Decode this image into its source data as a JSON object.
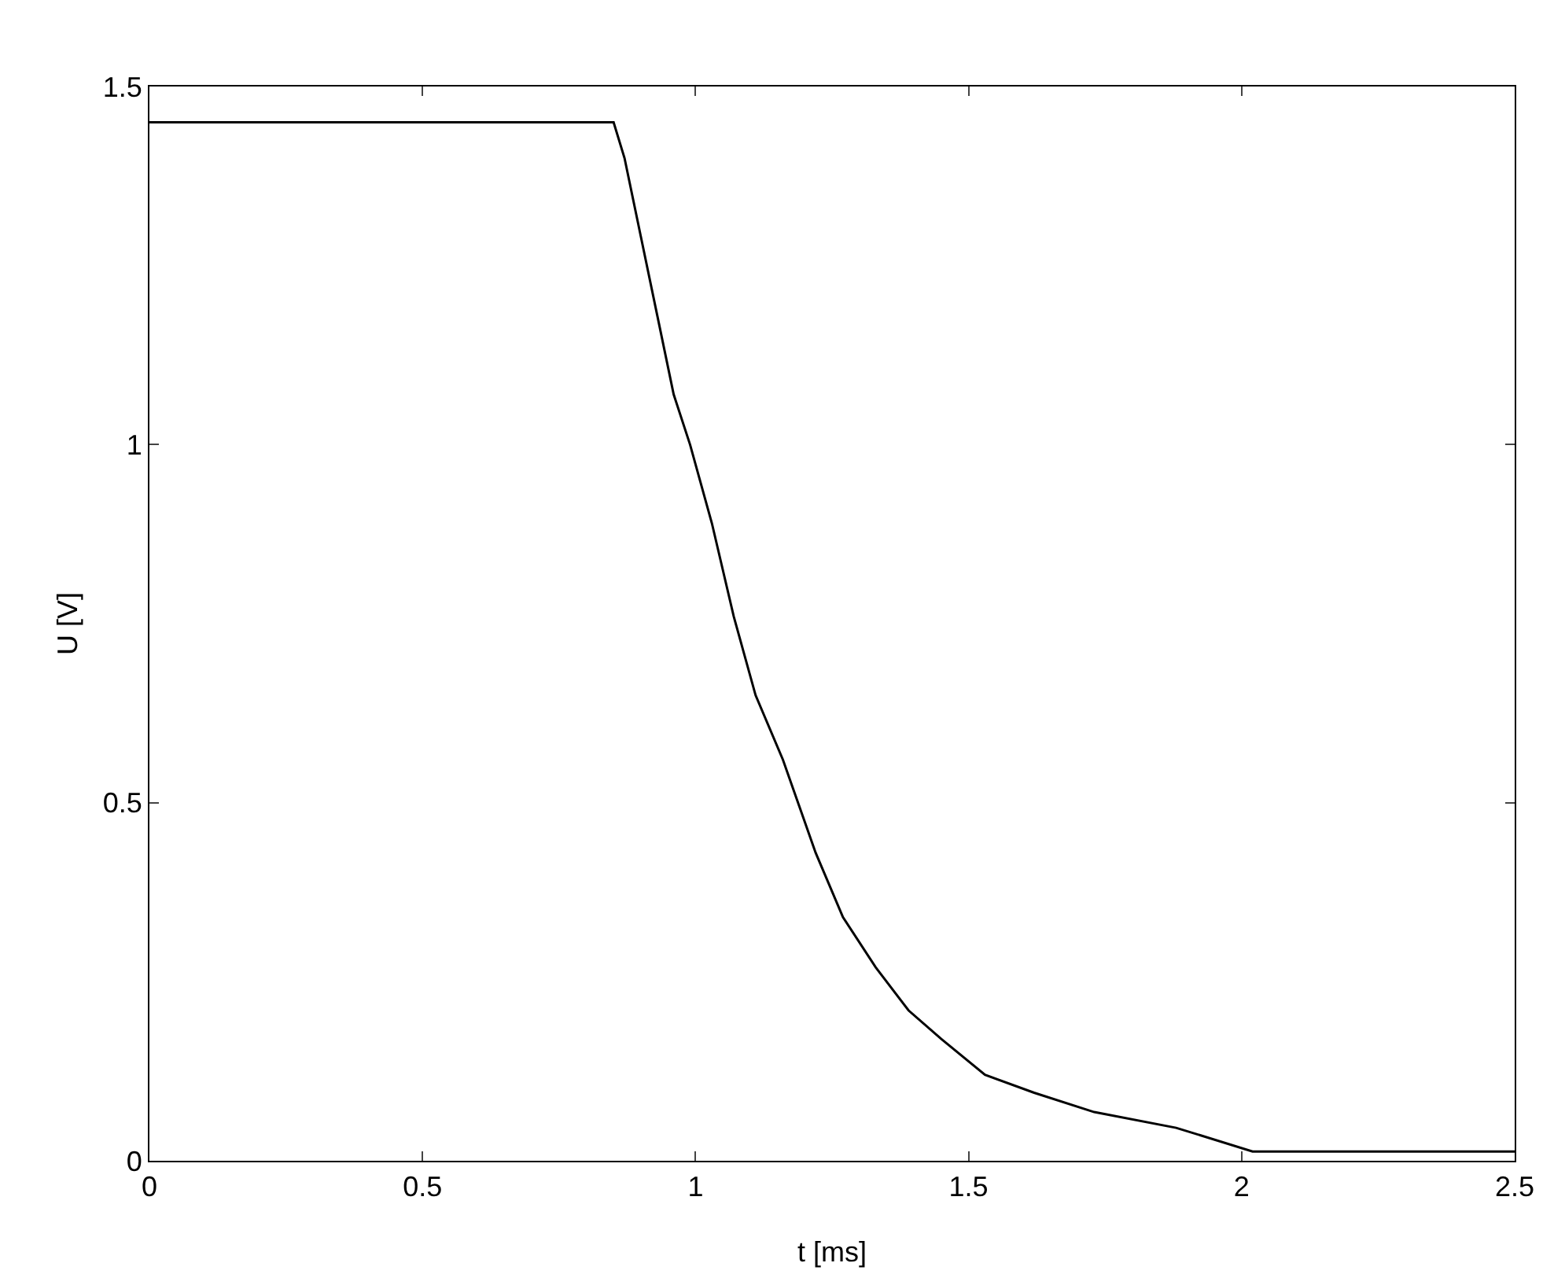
{
  "chart_data": {
    "type": "line",
    "xlabel": "t [ms]",
    "ylabel": "U [V]",
    "x": [
      0,
      0.85,
      0.87,
      0.9,
      0.93,
      0.96,
      0.99,
      1.03,
      1.07,
      1.11,
      1.16,
      1.22,
      1.27,
      1.33,
      1.39,
      1.45,
      1.53,
      1.62,
      1.73,
      1.88,
      2.02,
      2.5
    ],
    "series": [
      {
        "color": "#000000",
        "values": [
          1.45,
          1.45,
          1.4,
          1.29,
          1.18,
          1.07,
          1.0,
          0.89,
          0.76,
          0.65,
          0.56,
          0.43,
          0.34,
          0.27,
          0.21,
          0.17,
          0.12,
          0.095,
          0.068,
          0.046,
          0.013,
          0.013
        ]
      }
    ],
    "xlim": [
      0,
      2.5
    ],
    "xticks": [
      0,
      0.5,
      1,
      1.5,
      2,
      2.5
    ],
    "ylim": [
      0,
      1.5
    ],
    "yticks": [
      0,
      0.5,
      1,
      1.5
    ],
    "grid": false
  }
}
